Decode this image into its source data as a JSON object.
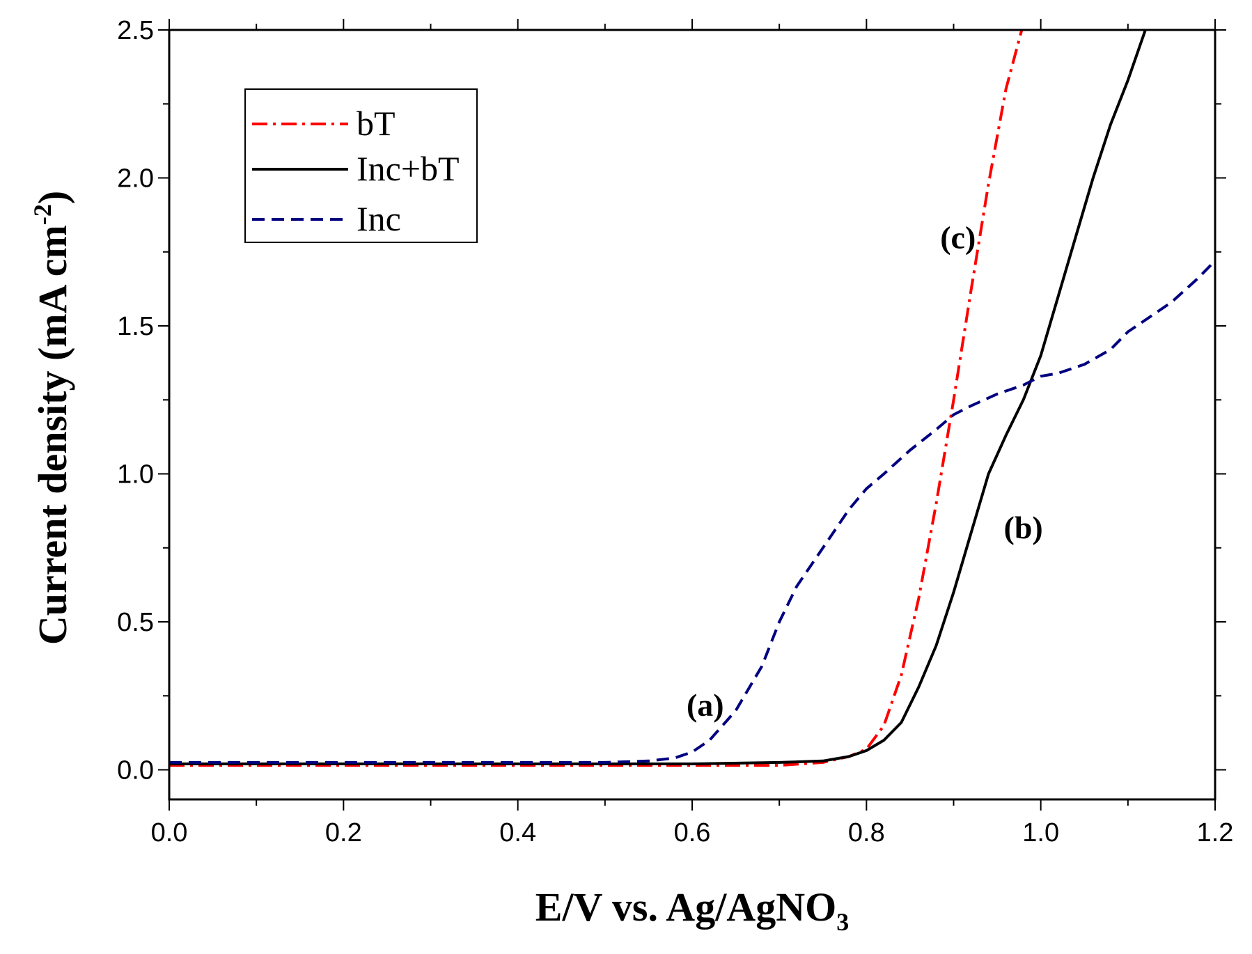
{
  "chart_data": {
    "type": "line",
    "title": "",
    "xlabel": "E/V vs. Ag/AgNO",
    "xlabel_subscript": "3",
    "ylabel": "Current density (mA cm",
    "ylabel_superscript": "-2",
    "ylabel_close": ")",
    "xlim": [
      0.0,
      1.2
    ],
    "ylim": [
      -0.1,
      2.5
    ],
    "x_ticks": [
      {
        "value": 0.0,
        "label": "0.0"
      },
      {
        "value": 0.2,
        "label": "0.2"
      },
      {
        "value": 0.4,
        "label": "0.4"
      },
      {
        "value": 0.6,
        "label": "0.6"
      },
      {
        "value": 0.8,
        "label": "0.8"
      },
      {
        "value": 1.0,
        "label": "1.0"
      },
      {
        "value": 1.2,
        "label": "1.2"
      }
    ],
    "y_ticks": [
      {
        "value": 0.0,
        "label": "0.0"
      },
      {
        "value": 0.5,
        "label": "0.5"
      },
      {
        "value": 1.0,
        "label": "1.0"
      },
      {
        "value": 1.5,
        "label": "1.5"
      },
      {
        "value": 2.0,
        "label": "2.0"
      },
      {
        "value": 2.5,
        "label": "2.5"
      }
    ],
    "grid": false,
    "legend_position": "top-left",
    "series": [
      {
        "name": "bT",
        "color": "#ff0000",
        "dash": "dashdot",
        "x": [
          0.0,
          0.1,
          0.2,
          0.3,
          0.4,
          0.5,
          0.6,
          0.7,
          0.75,
          0.78,
          0.8,
          0.82,
          0.84,
          0.86,
          0.88,
          0.9,
          0.92,
          0.94,
          0.96,
          0.98
        ],
        "y": [
          0.015,
          0.015,
          0.015,
          0.015,
          0.015,
          0.015,
          0.015,
          0.015,
          0.025,
          0.045,
          0.07,
          0.15,
          0.32,
          0.58,
          0.9,
          1.25,
          1.62,
          1.98,
          2.3,
          2.52
        ]
      },
      {
        "name": "Inc+bT",
        "color": "#000000",
        "dash": "solid",
        "x": [
          0.0,
          0.2,
          0.4,
          0.6,
          0.7,
          0.75,
          0.78,
          0.8,
          0.82,
          0.84,
          0.86,
          0.88,
          0.9,
          0.92,
          0.94,
          0.96,
          0.98,
          1.0,
          1.02,
          1.04,
          1.06,
          1.08,
          1.1,
          1.12
        ],
        "y": [
          0.02,
          0.02,
          0.02,
          0.02,
          0.025,
          0.03,
          0.045,
          0.065,
          0.1,
          0.16,
          0.28,
          0.42,
          0.6,
          0.8,
          1.0,
          1.13,
          1.25,
          1.4,
          1.6,
          1.8,
          2.0,
          2.18,
          2.33,
          2.5
        ]
      },
      {
        "name": "Inc",
        "color": "#000080",
        "dash": "dashed",
        "x": [
          0.0,
          0.2,
          0.4,
          0.5,
          0.55,
          0.58,
          0.6,
          0.62,
          0.65,
          0.68,
          0.7,
          0.72,
          0.75,
          0.78,
          0.8,
          0.82,
          0.85,
          0.88,
          0.9,
          0.92,
          0.95,
          0.98,
          1.0,
          1.02,
          1.05,
          1.08,
          1.1,
          1.12,
          1.15,
          1.18,
          1.2
        ],
        "y": [
          0.025,
          0.025,
          0.025,
          0.025,
          0.03,
          0.04,
          0.06,
          0.1,
          0.2,
          0.35,
          0.5,
          0.62,
          0.75,
          0.88,
          0.95,
          1.0,
          1.08,
          1.15,
          1.2,
          1.23,
          1.27,
          1.3,
          1.33,
          1.34,
          1.37,
          1.42,
          1.48,
          1.52,
          1.58,
          1.66,
          1.72
        ]
      }
    ],
    "legend": [
      {
        "label": "bT",
        "series": 0
      },
      {
        "label": "Inc+bT",
        "series": 1
      },
      {
        "label": "Inc",
        "series": 2
      }
    ],
    "annotations": [
      {
        "text": "(a)",
        "x": 0.615,
        "y": 0.22
      },
      {
        "text": "(b)",
        "x": 0.98,
        "y": 0.82
      },
      {
        "text": "(c)",
        "x": 0.905,
        "y": 1.8
      }
    ]
  }
}
